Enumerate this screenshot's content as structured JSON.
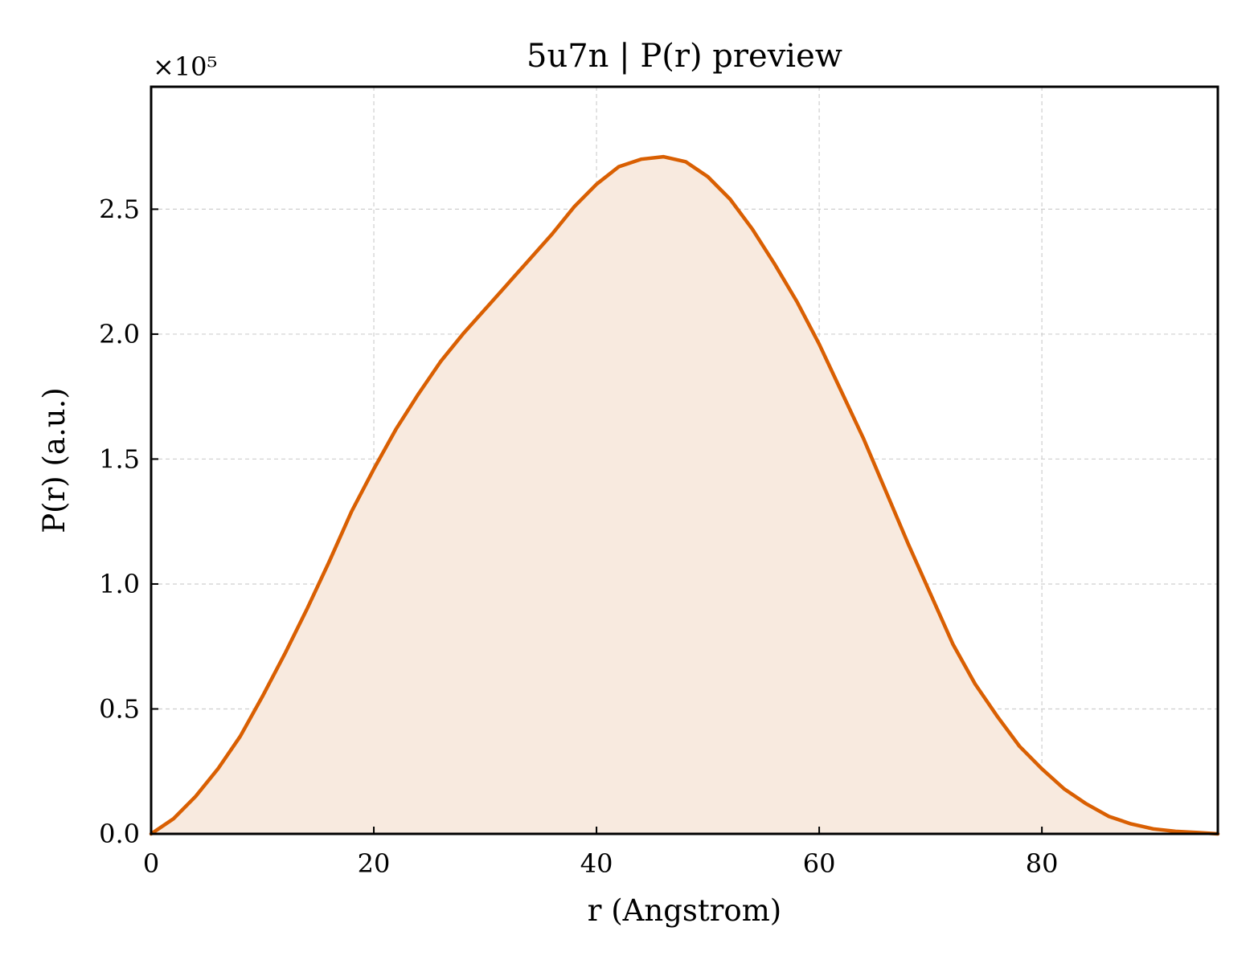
{
  "chart_data": {
    "type": "area",
    "title": "5u7n | P(r) preview",
    "xlabel": "r (Angstrom)",
    "ylabel": "P(r) (a.u.)",
    "y_offset_label": "×10⁵",
    "xlim": [
      0,
      95.8
    ],
    "ylim": [
      0,
      2.99
    ],
    "x_ticks": [
      0,
      20,
      40,
      60,
      80
    ],
    "x_tick_labels": [
      "0",
      "20",
      "40",
      "60",
      "80"
    ],
    "y_ticks": [
      0.0,
      0.5,
      1.0,
      1.5,
      2.0,
      2.5
    ],
    "y_tick_labels": [
      "0.0",
      "0.5",
      "1.0",
      "1.5",
      "2.0",
      "2.5"
    ],
    "grid": true,
    "line_color": "#d95f02",
    "fill_color": "#f8eadf",
    "series": [
      {
        "x": [
          0,
          2,
          4,
          6,
          8,
          10,
          12,
          14,
          16,
          18,
          20,
          22,
          24,
          26,
          28,
          30,
          32,
          34,
          36,
          38,
          40,
          42,
          44,
          46,
          48,
          50,
          52,
          54,
          56,
          58,
          60,
          62,
          64,
          66,
          68,
          70,
          72,
          74,
          76,
          78,
          80,
          82,
          84,
          86,
          88,
          90,
          92,
          94,
          95.8
        ],
        "y": [
          0.0,
          0.06,
          0.15,
          0.26,
          0.39,
          0.55,
          0.72,
          0.9,
          1.09,
          1.29,
          1.46,
          1.62,
          1.76,
          1.89,
          2.0,
          2.1,
          2.2,
          2.3,
          2.4,
          2.51,
          2.6,
          2.67,
          2.7,
          2.71,
          2.69,
          2.63,
          2.54,
          2.42,
          2.28,
          2.13,
          1.96,
          1.77,
          1.58,
          1.37,
          1.16,
          0.96,
          0.76,
          0.6,
          0.47,
          0.35,
          0.26,
          0.18,
          0.12,
          0.07,
          0.04,
          0.02,
          0.01,
          0.005,
          0.0
        ]
      }
    ]
  }
}
